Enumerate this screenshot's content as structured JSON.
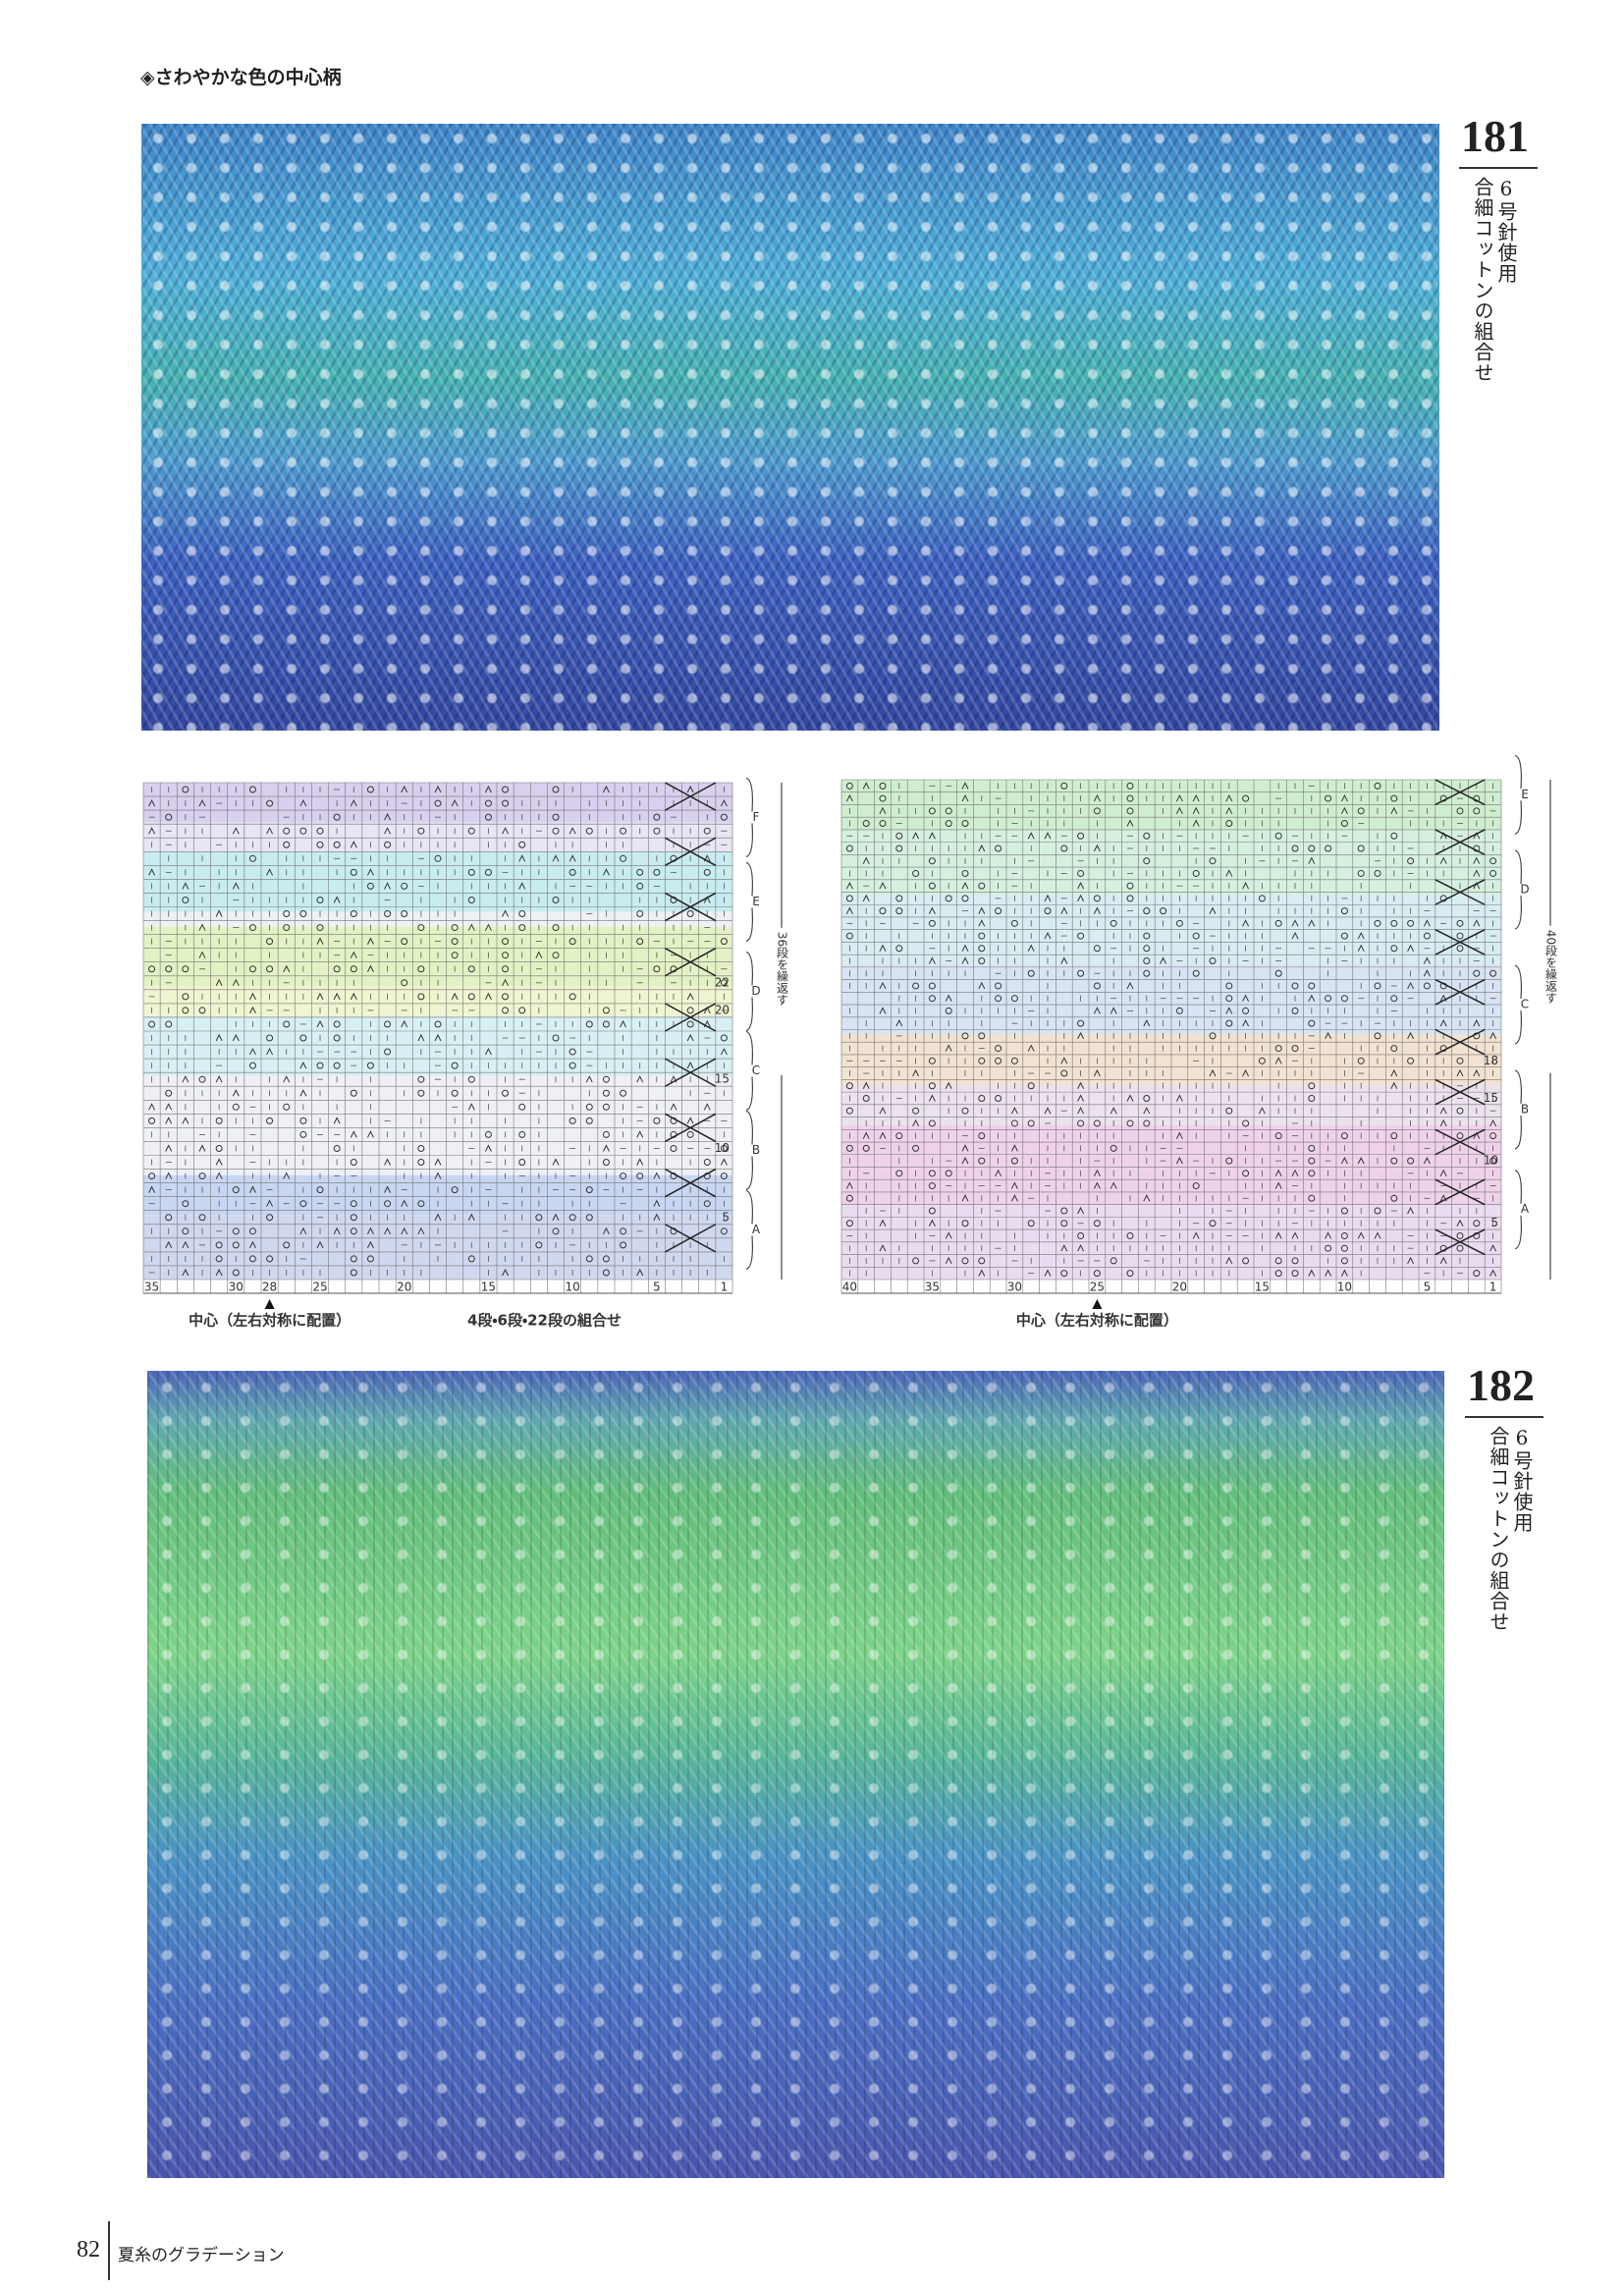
{
  "header": {
    "title": "◈さわやかな色の中心柄"
  },
  "patterns": [
    {
      "number": 181,
      "needle": "6号針使用",
      "yarn": "合細コットンの組合せ"
    },
    {
      "number": 182,
      "needle": "6号針使用",
      "yarn": "合細コットンの組合せ"
    }
  ],
  "charts": [
    {
      "sections": [
        "F",
        "E",
        "D",
        "C",
        "B",
        "A"
      ],
      "row_numbers": [
        22,
        20,
        15,
        10,
        5
      ],
      "repeat": "36段を繰返す",
      "column_numbers": [
        35,
        30,
        28,
        25,
        20,
        15,
        10,
        5,
        1
      ],
      "center_note": "中心（左右対称に配置）",
      "note": "4段・6段・22段の組合せ"
    },
    {
      "sections": [
        "E",
        "D",
        "C",
        "B",
        "A"
      ],
      "row_numbers": [
        18,
        15,
        10,
        5
      ],
      "repeat": "40段を繰返す",
      "column_numbers": [
        40,
        35,
        30,
        25,
        20,
        15,
        10,
        5,
        1
      ],
      "center_note": "中心（左右対称に配置）"
    }
  ],
  "footer": {
    "page": 82,
    "title": "夏糸のグラデーション"
  }
}
